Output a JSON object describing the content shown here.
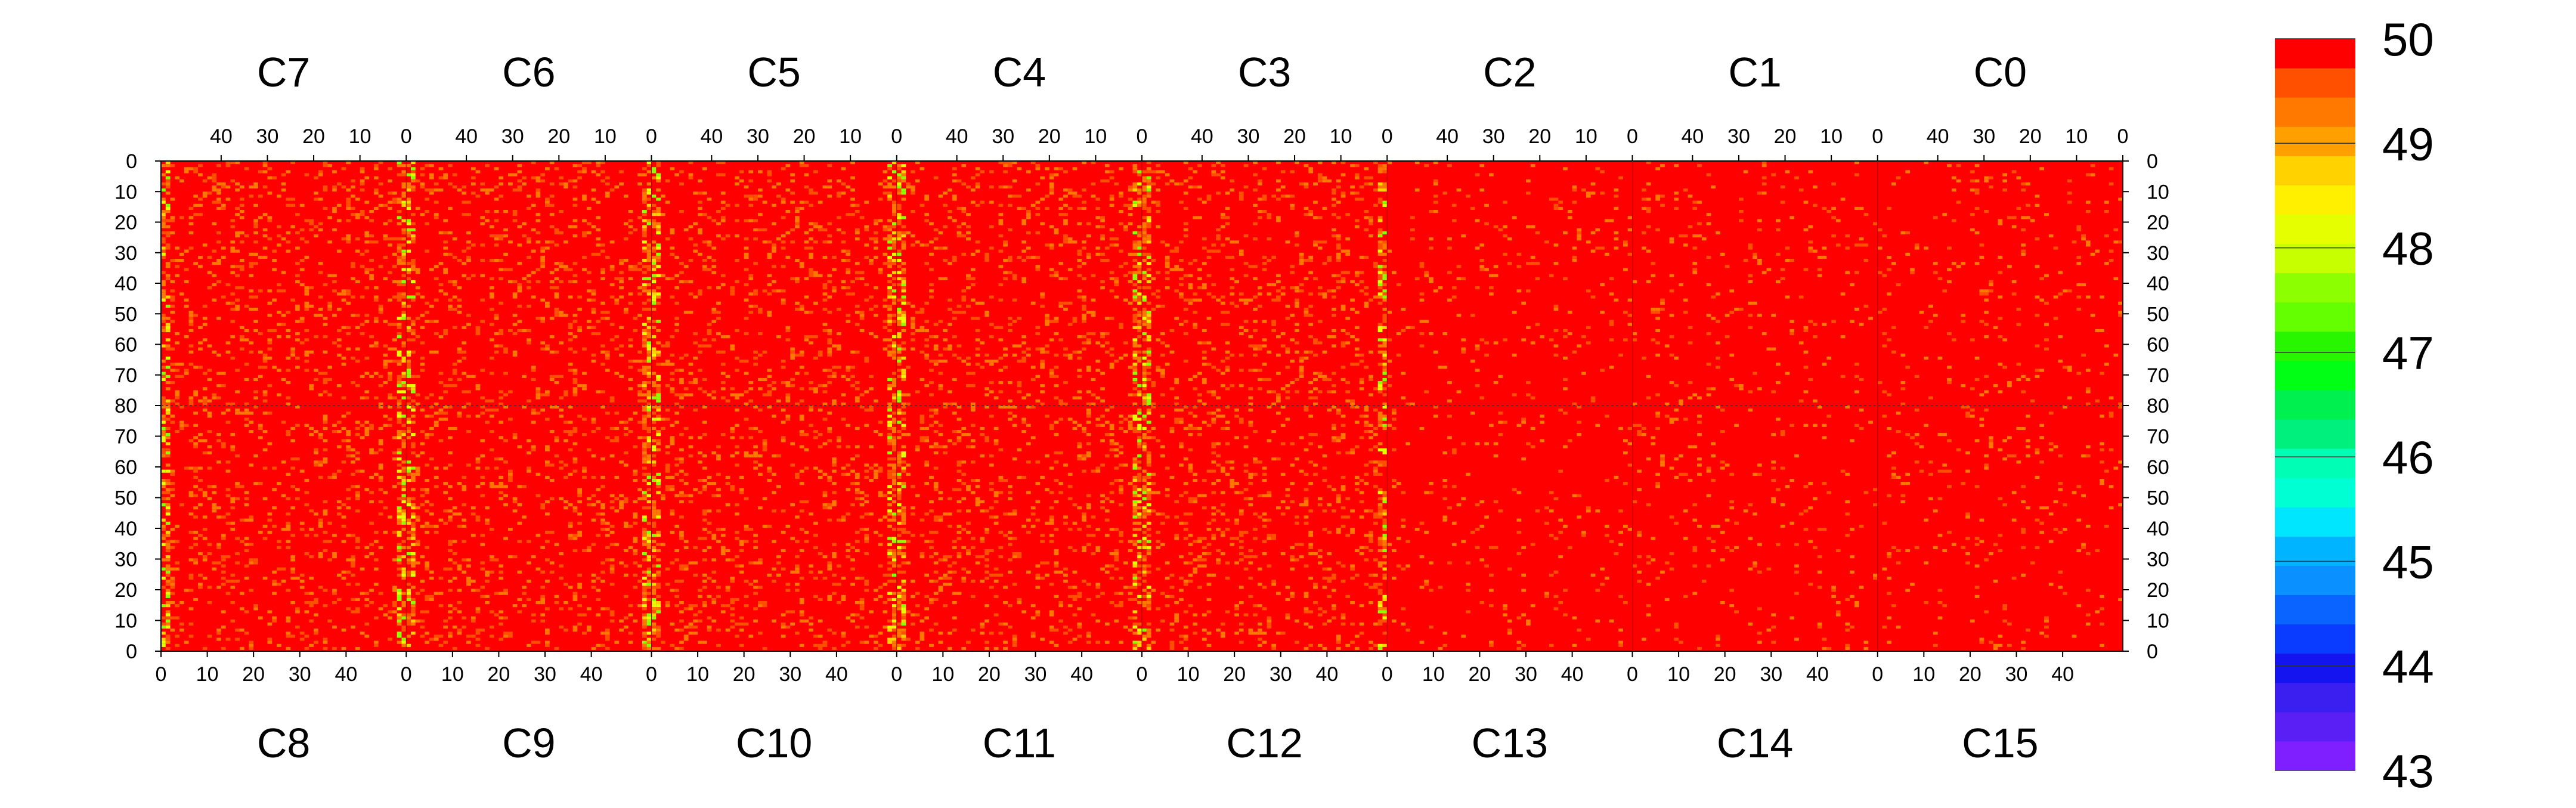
{
  "chart_data": {
    "type": "heatmap",
    "panels_top": [
      {
        "label": "C7",
        "x_ticks": [
          "40",
          "30",
          "20",
          "10",
          "0"
        ]
      },
      {
        "label": "C6",
        "x_ticks": [
          "40",
          "30",
          "20",
          "10",
          "0"
        ]
      },
      {
        "label": "C5",
        "x_ticks": [
          "40",
          "30",
          "20",
          "10",
          "0"
        ]
      },
      {
        "label": "C4",
        "x_ticks": [
          "40",
          "30",
          "20",
          "10",
          "0"
        ]
      },
      {
        "label": "C3",
        "x_ticks": [
          "40",
          "30",
          "20",
          "10",
          "0"
        ]
      },
      {
        "label": "C2",
        "x_ticks": [
          "40",
          "30",
          "20",
          "10",
          "0"
        ]
      },
      {
        "label": "C1",
        "x_ticks": [
          "40",
          "30",
          "20",
          "10",
          "0"
        ]
      },
      {
        "label": "C0",
        "x_ticks": [
          "40",
          "30",
          "20",
          "10",
          "0"
        ]
      }
    ],
    "panels_bottom": [
      {
        "label": "C8",
        "x_ticks": [
          "0",
          "10",
          "20",
          "30",
          "40"
        ]
      },
      {
        "label": "C9",
        "x_ticks": [
          "0",
          "10",
          "20",
          "30",
          "40"
        ]
      },
      {
        "label": "C10",
        "x_ticks": [
          "0",
          "10",
          "20",
          "30",
          "40"
        ]
      },
      {
        "label": "C11",
        "x_ticks": [
          "0",
          "10",
          "20",
          "30",
          "40"
        ]
      },
      {
        "label": "C12",
        "x_ticks": [
          "0",
          "10",
          "20",
          "30",
          "40"
        ]
      },
      {
        "label": "C13",
        "x_ticks": [
          "0",
          "10",
          "20",
          "30",
          "40"
        ]
      },
      {
        "label": "C14",
        "x_ticks": [
          "0",
          "10",
          "20",
          "30",
          "40"
        ]
      },
      {
        "label": "C15",
        "x_ticks": [
          "0",
          "10",
          "20",
          "30",
          "40"
        ]
      }
    ],
    "panel_x_range": [
      0,
      53
    ],
    "top_y_range": [
      0,
      80
    ],
    "bottom_y_range": [
      0,
      80
    ],
    "top_y_ticks": [
      "0",
      "10",
      "20",
      "30",
      "40",
      "50",
      "60",
      "70",
      "80"
    ],
    "bottom_y_ticks": [
      "80",
      "70",
      "60",
      "50",
      "40",
      "30",
      "20",
      "10",
      "0"
    ],
    "z_range": [
      43,
      50
    ],
    "colorbar_labels": [
      "50",
      "49",
      "48",
      "47",
      "46",
      "45",
      "44",
      "43"
    ],
    "colorbar_position": "right",
    "palette": [
      "#7f1fff",
      "#5a1ff5",
      "#3a1ff0",
      "#1414f0",
      "#0a3cff",
      "#0a64ff",
      "#0a90ff",
      "#00b4ff",
      "#00e6ff",
      "#00ffd2",
      "#00ffb4",
      "#00f07d",
      "#00f050",
      "#00ff14",
      "#28f500",
      "#64ff00",
      "#8cff00",
      "#c8ff00",
      "#e6ff00",
      "#fff000",
      "#ffd200",
      "#ffa000",
      "#ff7800",
      "#ff5000",
      "#ff0000"
    ],
    "background_value": 50,
    "background_color": "#ff0000",
    "dominant_cell_value": 50,
    "scattered_cell_values": [
      49.7,
      49.3,
      48.8,
      48.2,
      47.6
    ],
    "band_columns": [
      0,
      53
    ],
    "band_note_columns_with_lower_values": "panel edges near 0"
  }
}
